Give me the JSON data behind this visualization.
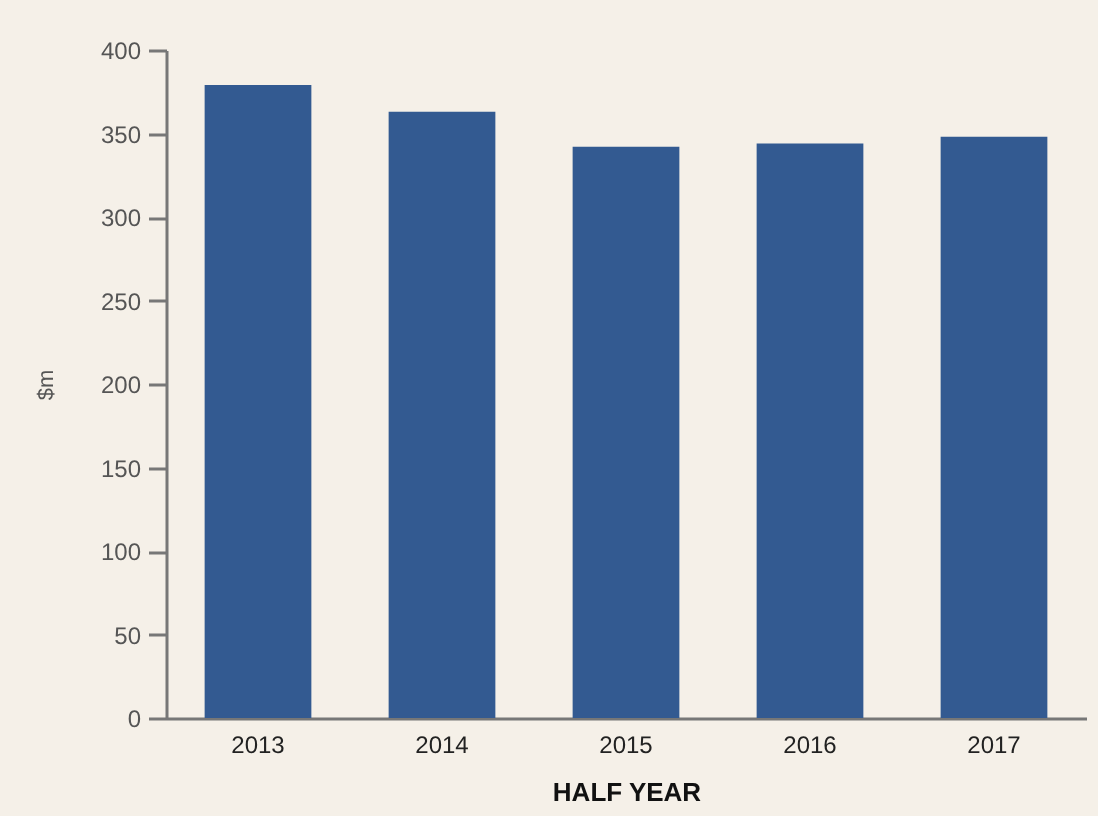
{
  "chart_data": {
    "type": "bar",
    "xlabel": "HALF YEAR",
    "ylabel": "$m",
    "categories": [
      "2013",
      "2014",
      "2015",
      "2016",
      "2017"
    ],
    "values": [
      379,
      363,
      342,
      344,
      348
    ],
    "color": "#335a91",
    "ylim": [
      0,
      400
    ],
    "yticks": [
      0,
      50,
      100,
      150,
      200,
      250,
      300,
      350,
      400
    ],
    "grid": false
  }
}
